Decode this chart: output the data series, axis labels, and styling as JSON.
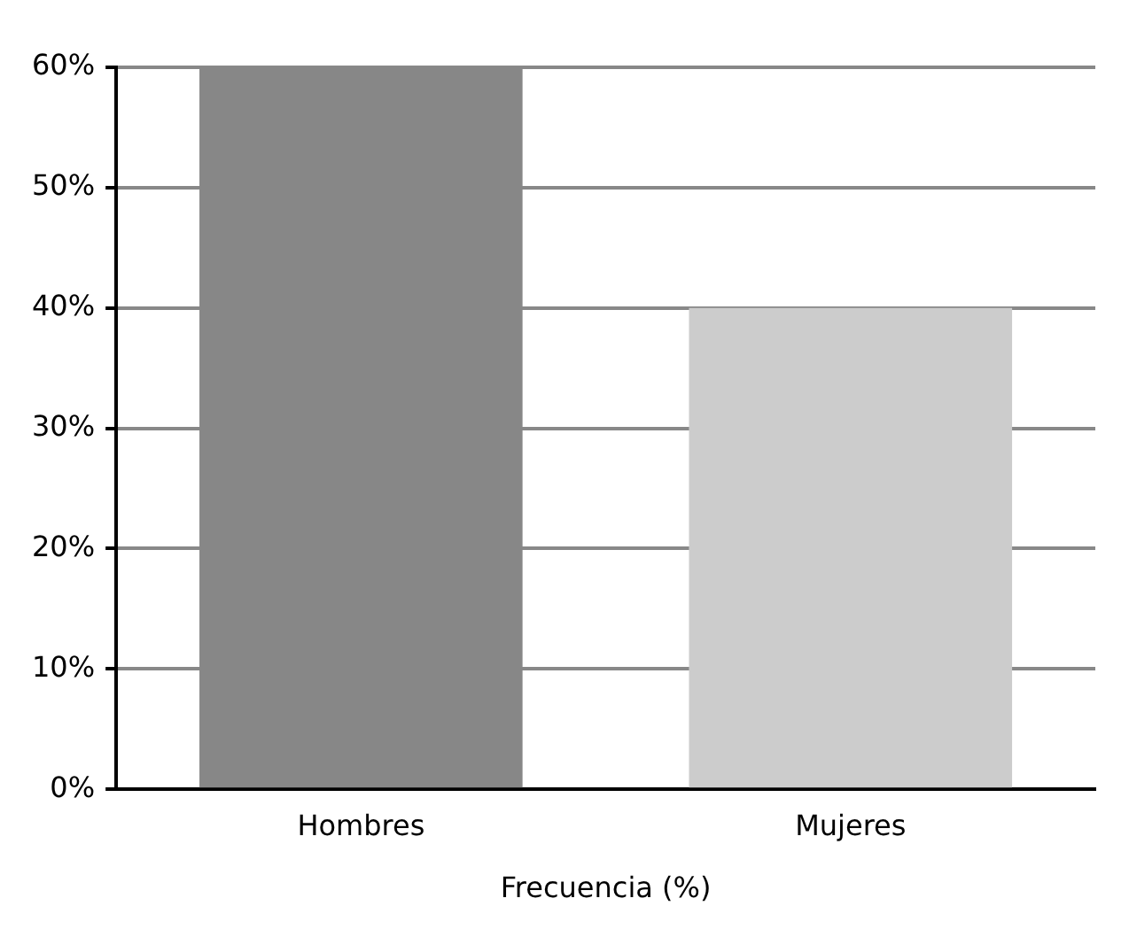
{
  "chart_data": {
    "type": "bar",
    "xlabel": "Frecuencia (%)",
    "categories": [
      "Hombres",
      "Mujeres"
    ],
    "values": [
      60,
      40
    ],
    "colors": [
      "#878787",
      "#cccccc"
    ],
    "ylim": [
      0,
      60
    ],
    "yticks": [
      {
        "value": 0,
        "label": "0%"
      },
      {
        "value": 10,
        "label": "10%"
      },
      {
        "value": 20,
        "label": "20%"
      },
      {
        "value": 30,
        "label": "30%"
      },
      {
        "value": 40,
        "label": "40%"
      },
      {
        "value": 50,
        "label": "50%"
      },
      {
        "value": 60,
        "label": "60%"
      }
    ],
    "grid": "y",
    "legend": false
  }
}
